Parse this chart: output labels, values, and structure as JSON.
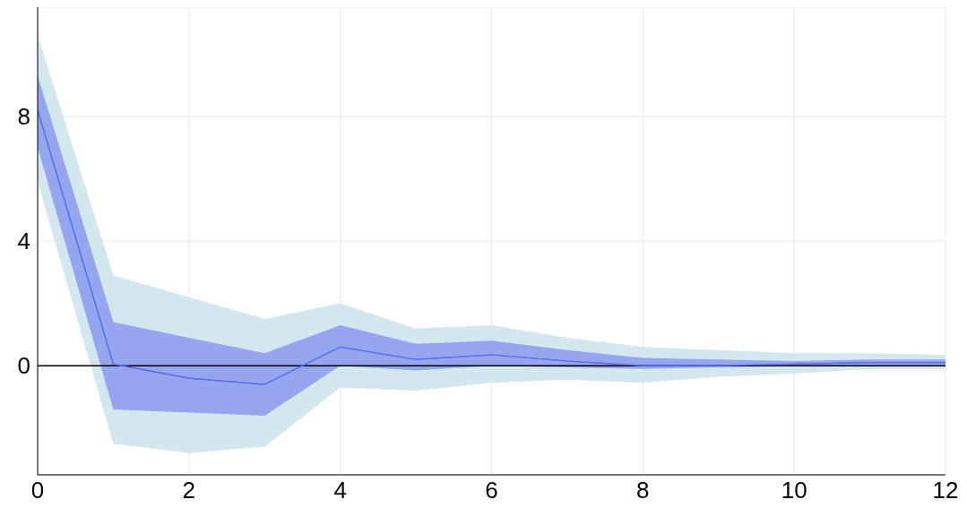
{
  "chart_data": {
    "type": "line",
    "x": [
      0,
      1,
      2,
      3,
      4,
      5,
      6,
      7,
      8,
      9,
      10,
      11,
      12
    ],
    "series": [
      {
        "color": "#5a6cf0",
        "values": [
          8.2,
          0.05,
          -0.4,
          -0.6,
          0.6,
          0.2,
          0.35,
          0.15,
          0.0,
          0.0,
          0.05,
          0.1,
          0.1
        ],
        "lower": [
          7.0,
          -1.4,
          -1.5,
          -1.6,
          0.0,
          -0.15,
          0.0,
          -0.05,
          -0.1,
          -0.05,
          0.0,
          0.0,
          0.0
        ],
        "upper": [
          9.3,
          1.4,
          0.9,
          0.4,
          1.3,
          0.7,
          0.8,
          0.5,
          0.25,
          0.2,
          0.15,
          0.2,
          0.2
        ]
      },
      {
        "color": "#5a6cf0",
        "values": [
          8.2,
          0.05,
          -0.4,
          -0.6,
          0.6,
          0.2,
          0.35,
          0.15,
          0.0,
          0.0,
          0.05,
          0.1,
          0.1
        ],
        "lower": [
          5.9,
          -2.5,
          -2.8,
          -2.6,
          -0.7,
          -0.8,
          -0.55,
          -0.45,
          -0.55,
          -0.35,
          -0.25,
          -0.1,
          -0.1
        ],
        "upper": [
          10.6,
          2.9,
          2.2,
          1.5,
          2.0,
          1.2,
          1.3,
          0.9,
          0.6,
          0.5,
          0.4,
          0.4,
          0.35
        ]
      }
    ],
    "xlim": [
      0,
      12
    ],
    "xticks": [
      0,
      2,
      4,
      6,
      8,
      10,
      12
    ],
    "ylim": [
      -3.5,
      11.5
    ],
    "yticks": [
      0,
      4,
      8
    ],
    "grid": true,
    "ref_lines": [
      {
        "axis": "y",
        "value": 0,
        "color": "#000000"
      }
    ]
  }
}
